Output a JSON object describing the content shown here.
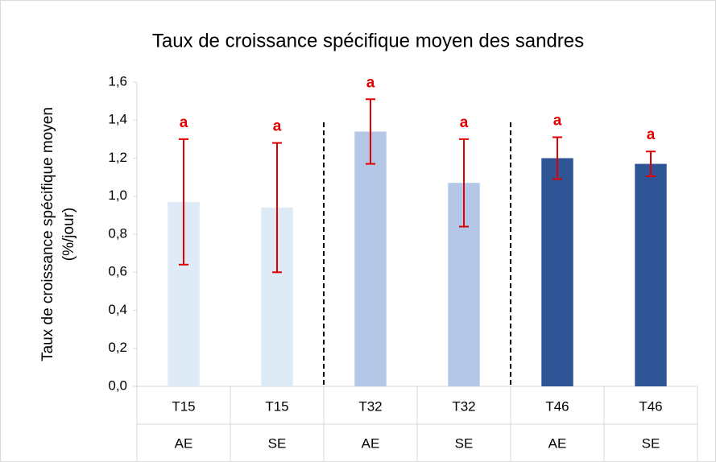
{
  "chart_data": {
    "type": "bar",
    "title": "Taux de croissance spécifique moyen des sandres",
    "ylabel": [
      "Taux de croissance spécifique moyen",
      "(%/jour)"
    ],
    "categories": [
      "T15",
      "T15",
      "T32",
      "T32",
      "T46",
      "T46"
    ],
    "subcategories": [
      "AE",
      "SE",
      "AE",
      "SE",
      "AE",
      "SE"
    ],
    "values": [
      0.97,
      0.94,
      1.34,
      1.07,
      1.2,
      1.17
    ],
    "errors": [
      0.33,
      0.34,
      0.17,
      0.23,
      0.11,
      0.065
    ],
    "significance": [
      "a",
      "a",
      "a",
      "a",
      "a",
      "a"
    ],
    "colors": [
      "#deeaf6",
      "#deeaf6",
      "#b4c7e7",
      "#b4c7e7",
      "#2f5597",
      "#2f5597"
    ],
    "error_color": "#e00000",
    "ylim": [
      0,
      1.6
    ],
    "yticks": [
      {
        "value": 0,
        "label": "0,0"
      },
      {
        "value": 0.2,
        "label": "0,2"
      },
      {
        "value": 0.4,
        "label": "0,4"
      },
      {
        "value": 0.6,
        "label": "0,6"
      },
      {
        "value": 0.8,
        "label": "0,8"
      },
      {
        "value": 1.0,
        "label": "1,0"
      },
      {
        "value": 1.2,
        "label": "1,2"
      },
      {
        "value": 1.4,
        "label": "1,4"
      },
      {
        "value": 1.6,
        "label": "1,6"
      }
    ],
    "grid": false
  }
}
